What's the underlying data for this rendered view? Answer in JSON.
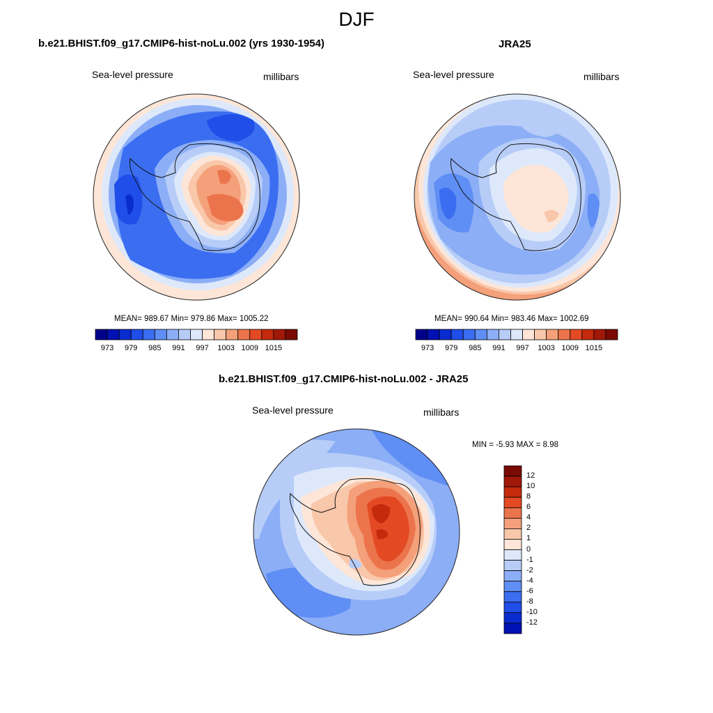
{
  "figure": {
    "title": "DJF"
  },
  "palette": [
    "#00008b",
    "#0011b4",
    "#0a2ccf",
    "#1f4ee8",
    "#3a6df0",
    "#5f8ef4",
    "#8caef6",
    "#b7cdf8",
    "#dde8fb",
    "#fde6d8",
    "#f9c7aa",
    "#f4a07a",
    "#ec744c",
    "#e34a24",
    "#c42a0c",
    "#a01808",
    "#7a0a04"
  ],
  "panels": [
    {
      "title": "b.e21.BHIST.f09_g17.CMIP6-hist-noLu.002 (yrs 1930-1954)",
      "left_label": "Sea-level pressure",
      "right_label": "millibars",
      "stats": "MEAN= 989.67  Min= 979.86  Max= 1005.22",
      "colorbar_labels": [
        "973",
        "979",
        "985",
        "991",
        "997",
        "1003",
        "1009",
        "1015"
      ]
    },
    {
      "title": "JRA25",
      "left_label": "Sea-level pressure",
      "right_label": "millibars",
      "stats": "MEAN= 990.64  Min= 983.46  Max= 1002.69",
      "colorbar_labels": [
        "973",
        "979",
        "985",
        "991",
        "997",
        "1003",
        "1009",
        "1015"
      ]
    },
    {
      "title": "b.e21.BHIST.f09_g17.CMIP6-hist-noLu.002 - JRA25",
      "left_label": "Sea-level pressure",
      "right_label": "millibars",
      "stats": "MIN =  -5.93 MAX =   8.98",
      "colorbar_labels": [
        "12",
        "10",
        "8",
        "6",
        "4",
        "2",
        "1",
        "0",
        "-1",
        "-2",
        "-4",
        "-6",
        "-8",
        "-10",
        "-12"
      ],
      "colorbar_colors": [
        "#7a0a04",
        "#a01808",
        "#c42a0c",
        "#e34a24",
        "#ec744c",
        "#f4a07a",
        "#f9c7aa",
        "#fde6d8",
        "#dde8fb",
        "#b7cdf8",
        "#8caef6",
        "#5f8ef4",
        "#3a6df0",
        "#1f4ee8",
        "#0a2ccf",
        "#0011b4"
      ]
    }
  ]
}
